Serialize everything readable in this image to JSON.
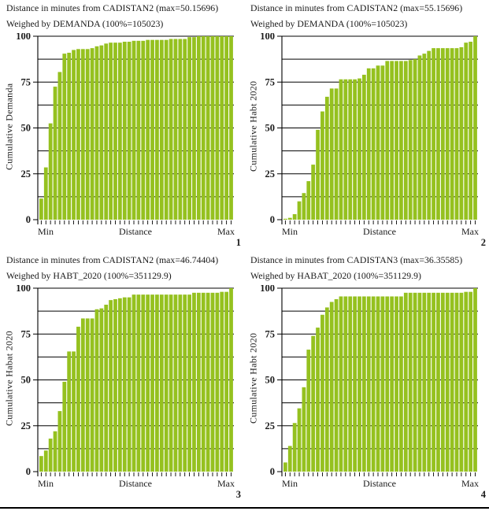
{
  "chart_data": [
    {
      "type": "bar",
      "panel_number": "1",
      "title_line1": "Distance in minutes from CADISTAN2 (max=50.15696)",
      "title_line2": "Weighed by DEMANDA (100%=105023)",
      "ylabel": "Cumulative Demanda",
      "xlabel": "Distance",
      "x_min_label": "Min",
      "x_max_label": "Max",
      "ylim": [
        0,
        100
      ],
      "yticks": [
        0,
        25,
        50,
        75,
        100
      ],
      "grid_interval": 12.5,
      "grid_on": true,
      "bar_color": "#95c11f",
      "axis_color": "#000000",
      "values": [
        11.5,
        28.5,
        52.5,
        72.5,
        80.5,
        90.5,
        91,
        92.5,
        93,
        93,
        93,
        93.5,
        94.5,
        95,
        96,
        96.5,
        96.5,
        96.5,
        97,
        97,
        97.5,
        97.5,
        97.5,
        98,
        98,
        98,
        98,
        98,
        98.5,
        98.5,
        98.5,
        98.5,
        99.5,
        99.5,
        100,
        100,
        100,
        100,
        100,
        100,
        100,
        100
      ]
    },
    {
      "type": "bar",
      "panel_number": "2",
      "title_line1": "Distance in minutes from CADISTAN2 (max=55.15696)",
      "title_line2": "Weighed by DEMANDA (100%=105023)",
      "ylabel": "Cumulative Habt 2020",
      "xlabel": "Distance",
      "x_min_label": "Min",
      "x_max_label": "Max",
      "ylim": [
        0,
        100
      ],
      "yticks": [
        0,
        25,
        50,
        75,
        100
      ],
      "grid_interval": 12.5,
      "grid_on": true,
      "bar_color": "#95c11f",
      "axis_color": "#000000",
      "values": [
        0.5,
        1,
        3,
        10,
        14.5,
        21,
        30,
        49,
        59,
        67,
        71.5,
        71.5,
        76.5,
        76.5,
        76.5,
        76.5,
        77,
        79,
        82.5,
        82.5,
        84,
        84,
        86.5,
        86.5,
        86.5,
        86.5,
        86.5,
        87,
        87.5,
        89.5,
        90.5,
        92,
        93.5,
        93.5,
        93.5,
        93.5,
        93.5,
        93.5,
        94,
        96.5,
        97,
        100
      ]
    },
    {
      "type": "bar",
      "panel_number": "3",
      "title_line1": "Distance in minutes from CADISTAN2 (max=46.74404)",
      "title_line2": "Weighed by HABT_2020 (100%=351129.9)",
      "ylabel": "Cumulative Habat 2020",
      "xlabel": "Distance",
      "x_min_label": "Min",
      "x_max_label": "Max",
      "ylim": [
        0,
        100
      ],
      "yticks": [
        0,
        25,
        50,
        75,
        100
      ],
      "grid_interval": 12.5,
      "grid_on": true,
      "bar_color": "#95c11f",
      "axis_color": "#000000",
      "values": [
        8.5,
        11.5,
        18,
        22,
        33,
        49,
        65.5,
        65.5,
        79,
        83.5,
        83.5,
        83.5,
        88.5,
        89,
        91,
        93.5,
        94,
        94.5,
        95,
        95,
        96.5,
        96.5,
        96.5,
        96.5,
        96.5,
        96.5,
        96.5,
        96.5,
        96.5,
        96.5,
        96.5,
        96.5,
        96.5,
        97.5,
        97.5,
        97.5,
        97.5,
        97.5,
        97.5,
        98,
        98,
        100
      ]
    },
    {
      "type": "bar",
      "panel_number": "4",
      "title_line1": "Distance in minutes from CADISTAN3 (max=36.35585)",
      "title_line2": "Weighed by HABAT_2020 (100%=351129.9)",
      "ylabel": "Cumulative Habt 2020",
      "xlabel": "Distance",
      "x_min_label": "Min",
      "x_max_label": "Max",
      "ylim": [
        0,
        100
      ],
      "yticks": [
        0,
        25,
        50,
        75,
        100
      ],
      "grid_interval": 12.5,
      "grid_on": true,
      "bar_color": "#95c11f",
      "axis_color": "#000000",
      "values": [
        5,
        14,
        26.5,
        34.5,
        46,
        66.5,
        74,
        78.5,
        85.5,
        89.5,
        92.5,
        94,
        95.5,
        95.5,
        95.5,
        95.5,
        95.5,
        95.5,
        95.5,
        95.5,
        95.5,
        95.5,
        95.5,
        95.5,
        95.5,
        95.5,
        97.5,
        97.5,
        97.5,
        97.5,
        97.5,
        97.5,
        97.5,
        97.5,
        97.5,
        97.5,
        97.5,
        97.5,
        97.5,
        98,
        98,
        100
      ]
    }
  ]
}
